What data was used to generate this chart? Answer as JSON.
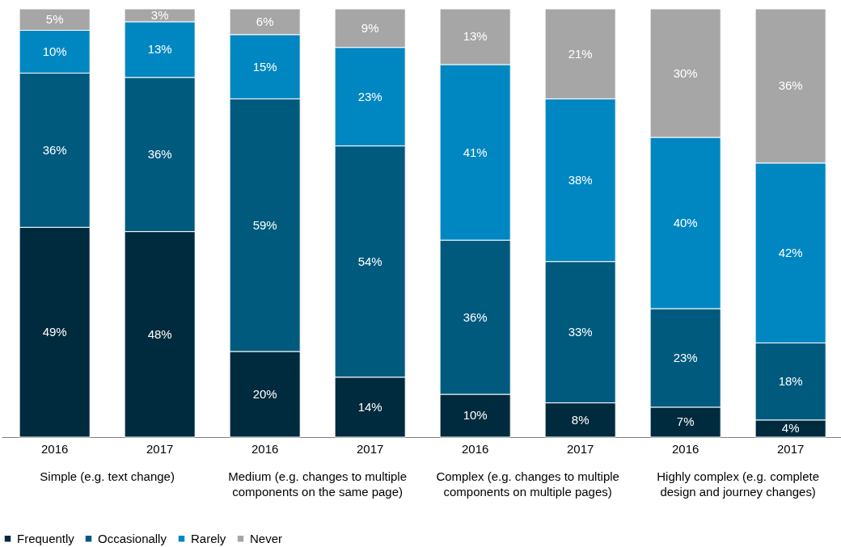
{
  "chart_data": {
    "type": "bar",
    "stacked": true,
    "legend": "bottom",
    "grid": false,
    "categories": [
      "2016",
      "2017",
      "2016",
      "2017",
      "2016",
      "2017",
      "2016",
      "2017"
    ],
    "series": [
      {
        "name": "Frequently",
        "color": "#002a3d",
        "values": [
          49,
          48,
          20,
          14,
          10,
          8,
          7,
          4
        ],
        "value_labels": [
          "49%",
          "48%",
          "20%",
          "14%",
          "10%",
          "8%",
          "7%",
          "4%"
        ]
      },
      {
        "name": "Occasionally",
        "color": "#005a7e",
        "values": [
          36,
          36,
          59,
          54,
          36,
          33,
          23,
          18
        ],
        "value_labels": [
          "36%",
          "36%",
          "59%",
          "54%",
          "36%",
          "33%",
          "23%",
          "18%"
        ]
      },
      {
        "name": "Rarely",
        "color": "#0087c1",
        "values": [
          10,
          13,
          15,
          23,
          41,
          38,
          40,
          42
        ],
        "value_labels": [
          "10%",
          "13%",
          "15%",
          "23%",
          "41%",
          "38%",
          "40%",
          "42%"
        ]
      },
      {
        "name": "Never",
        "color": "#a6a6a6",
        "values": [
          5,
          3,
          6,
          9,
          13,
          21,
          30,
          36
        ],
        "value_labels": [
          "5%",
          "3%",
          "6%",
          "9%",
          "13%",
          "21%",
          "30%",
          "36%"
        ]
      }
    ],
    "annotations": [
      "Simple (e.g. text change)",
      "Medium (e.g. changes to multiple components on the same page)",
      "Complex (e.g. changes to multiple components on multiple pages)",
      "Highly complex (e.g. complete design and journey changes)"
    ]
  }
}
